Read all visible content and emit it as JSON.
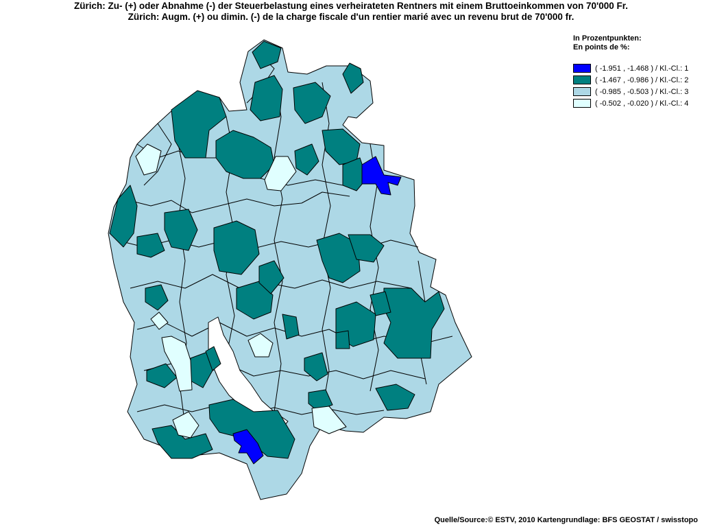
{
  "title": {
    "line1": "Zürich: Zu- (+) oder Abnahme (-) der Steuerbelastung eines verheirateten Rentners mit einem Bruttoeinkommen von 70'000 Fr.",
    "line2": "Zürich: Augm. (+) ou dimin. (-) de la charge fiscale d'un rentier marié avec un revenu brut de 70'000 fr."
  },
  "legend": {
    "heading1": "In Prozentpunkten:",
    "heading2": "En points de %:",
    "items": [
      {
        "label": "( -1.951 , -1.468 ) / Kl.-Cl.: 1",
        "color": "#0000ff"
      },
      {
        "label": "( -1.467 , -0.986 ) / Kl.-Cl.: 2",
        "color": "#008080"
      },
      {
        "label": "( -0.985 , -0.503 ) / Kl.-Cl.: 3",
        "color": "#add8e6"
      },
      {
        "label": "( -0.502 , -0.020 ) / Kl.-Cl.: 4",
        "color": "#e0ffff"
      }
    ]
  },
  "source": "Quelle/Source:© ESTV, 2010 Kartengrundlage: BFS GEOSTAT / swisstopo"
}
